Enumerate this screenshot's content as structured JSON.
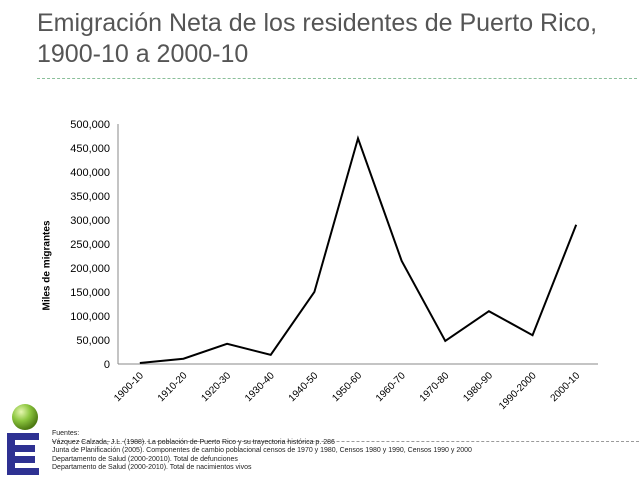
{
  "title": "Emigración Neta de los residentes de Puerto Rico, 1900-10 a 2000-10",
  "chart_data": {
    "type": "line",
    "title": "Emigración Neta de los residentes de Puerto Rico, 1900-10 a 2000-10",
    "ylabel": "Miles de migrantes",
    "xlabel": "",
    "categories": [
      "1900-10",
      "1910-20",
      "1920-30",
      "1930-40",
      "1940-50",
      "1950-60",
      "1960-70",
      "1970-80",
      "1980-90",
      "1990-2000",
      "2000-10"
    ],
    "values": [
      2000,
      11000,
      42000,
      19000,
      150000,
      470000,
      215000,
      48000,
      110000,
      60000,
      290000
    ],
    "ylim": [
      0,
      500000
    ],
    "yticks": [
      "0",
      "50,000",
      "100,000",
      "150,000",
      "200,000",
      "250,000",
      "300,000",
      "350,000",
      "400,000",
      "450,000",
      "500,000"
    ],
    "grid": false,
    "line_color": "#000000"
  },
  "sources": {
    "heading": "Fuentes:",
    "lines": [
      "Vázquez Calzada, J.L. (1988). La población de Puerto Rico y su trayectoria histórica p. 286",
      "Junta de Planificación (2005). Componentes de cambio poblacional censos de 1970 y 1980,  Censos 1980 y 1990,  Censos 1990 y 2000",
      "Departamento de Salud (2000-20010). Total de defunciones",
      "Departamento de Salud (2000-2010). Total de nacimientos vivos"
    ]
  },
  "colors": {
    "logo_sphere": "#8cc63f",
    "logo_e": "#2e3192",
    "title": "#555555"
  }
}
